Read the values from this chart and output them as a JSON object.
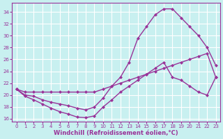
{
  "xlabel": "Windchill (Refroidissement éolien,°C)",
  "bg_color": "#c8f0f0",
  "line_color": "#993399",
  "xlim": [
    -0.5,
    23.5
  ],
  "ylim": [
    15.5,
    35.5
  ],
  "xticks": [
    0,
    1,
    2,
    3,
    4,
    5,
    6,
    7,
    8,
    9,
    10,
    11,
    12,
    13,
    14,
    15,
    16,
    17,
    18,
    19,
    20,
    21,
    22,
    23
  ],
  "yticks": [
    16,
    18,
    20,
    22,
    24,
    26,
    28,
    30,
    32,
    34
  ],
  "line1_x": [
    0,
    1,
    2,
    3,
    4,
    5,
    6,
    7,
    8,
    9,
    10,
    11,
    12,
    13,
    14,
    15,
    16,
    17,
    18,
    19,
    20,
    21,
    22,
    23
  ],
  "line1_y": [
    21.0,
    19.8,
    19.2,
    18.5,
    17.8,
    17.2,
    16.8,
    16.3,
    16.2,
    16.5,
    18.0,
    19.2,
    20.5,
    21.5,
    22.5,
    23.5,
    24.5,
    25.5,
    23.0,
    22.5,
    21.5,
    20.5,
    20.0,
    23.0
  ],
  "line2_x": [
    0,
    1,
    2,
    3,
    4,
    5,
    6,
    7,
    8,
    9,
    10,
    11,
    12,
    13,
    14,
    15,
    16,
    17,
    18,
    19,
    20,
    21,
    22,
    23
  ],
  "line2_y": [
    21.0,
    20.0,
    19.8,
    19.2,
    18.8,
    18.5,
    18.2,
    17.8,
    17.5,
    18.0,
    19.5,
    21.5,
    23.0,
    25.5,
    29.5,
    31.5,
    33.5,
    34.5,
    34.5,
    33.0,
    31.5,
    30.0,
    28.0,
    25.0
  ],
  "line3_x": [
    0,
    1,
    2,
    3,
    4,
    5,
    6,
    7,
    8,
    9,
    10,
    11,
    12,
    13,
    14,
    15,
    16,
    17,
    18,
    19,
    20,
    21,
    22,
    23
  ],
  "line3_y": [
    21.0,
    20.5,
    20.5,
    20.5,
    20.5,
    20.5,
    20.5,
    20.5,
    20.5,
    20.5,
    21.0,
    21.5,
    22.0,
    22.5,
    23.0,
    23.5,
    24.0,
    24.5,
    25.0,
    25.5,
    26.0,
    26.5,
    27.0,
    23.0
  ],
  "marker": "D",
  "markersize": 2.0,
  "linewidth": 1.0
}
